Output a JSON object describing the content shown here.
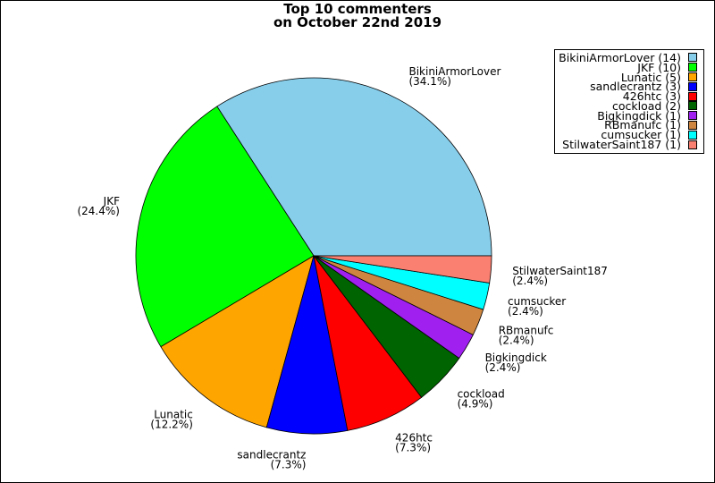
{
  "chart_data": {
    "type": "pie",
    "title": [
      "Top 10 commenters",
      "on October 22nd 2019"
    ],
    "legend_position": "top-right",
    "start_angle_deg": 0,
    "direction": "counterclockwise",
    "slices": [
      {
        "label": "BikiniArmorLover",
        "value": 14,
        "percent": "34.1%",
        "color": "#87ceeb"
      },
      {
        "label": "JKF",
        "value": 10,
        "percent": "24.4%",
        "color": "#00ff00"
      },
      {
        "label": "Lunatic",
        "value": 5,
        "percent": "12.2%",
        "color": "#ffa500"
      },
      {
        "label": "sandlecrantz",
        "value": 3,
        "percent": "7.3%",
        "color": "#0000ff"
      },
      {
        "label": "426htc",
        "value": 3,
        "percent": "7.3%",
        "color": "#ff0000"
      },
      {
        "label": "cockload",
        "value": 2,
        "percent": "4.9%",
        "color": "#006400"
      },
      {
        "label": "Bigkingdick",
        "value": 1,
        "percent": "2.4%",
        "color": "#a020f0"
      },
      {
        "label": "RBmanufc",
        "value": 1,
        "percent": "2.4%",
        "color": "#cd853f"
      },
      {
        "label": "cumsucker",
        "value": 1,
        "percent": "2.4%",
        "color": "#00ffff"
      },
      {
        "label": "StilwaterSaint187",
        "value": 1,
        "percent": "2.4%",
        "color": "#fa8072"
      }
    ]
  }
}
